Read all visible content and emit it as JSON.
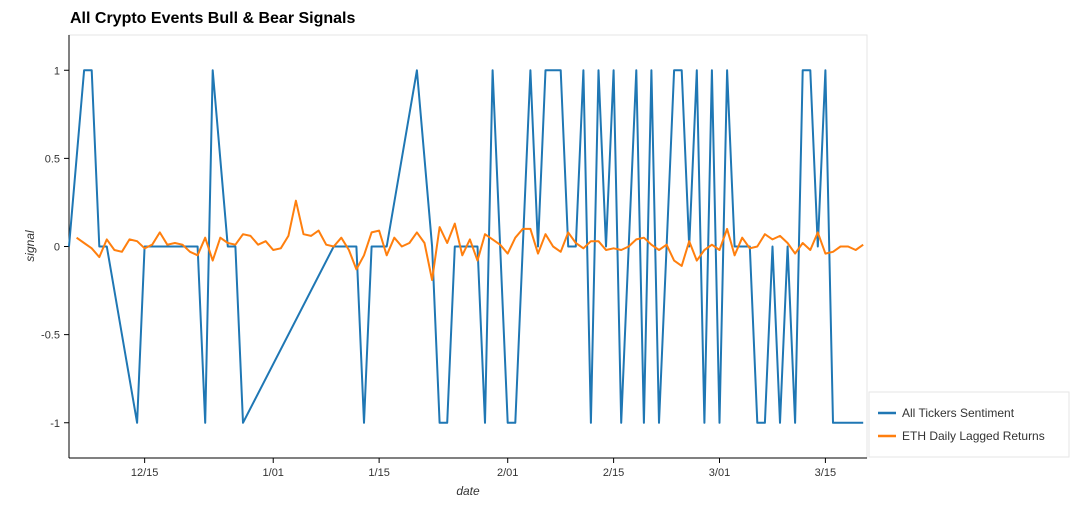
{
  "chart_data": {
    "type": "line",
    "title": "All Crypto Events Bull & Bear Signals",
    "xlabel": "date",
    "ylabel": "signal",
    "ylim": [
      -1.2,
      1.2
    ],
    "y_ticks": [
      "1",
      "0.5",
      "0",
      "-0.5",
      "-1"
    ],
    "x_ticks": [
      "12/15",
      "1/01",
      "1/15",
      "2/01",
      "2/15",
      "3/01",
      "3/15"
    ],
    "legend_position": "bottom-right",
    "grid": false,
    "series": [
      {
        "name": "All Tickers Sentiment",
        "color": "#1f77b4",
        "x": [
          "12/05",
          "12/07",
          "12/08",
          "12/09",
          "12/10",
          "12/14",
          "12/15",
          "12/16",
          "12/22",
          "12/23",
          "12/24",
          "12/26",
          "12/27",
          "12/28",
          "1/09",
          "1/10",
          "1/11",
          "1/12",
          "1/13",
          "1/14",
          "1/16",
          "1/20",
          "1/22",
          "1/23",
          "1/24",
          "1/25",
          "1/27",
          "1/28",
          "1/29",
          "1/30",
          "2/01",
          "2/02",
          "2/03",
          "2/04",
          "2/05",
          "2/06",
          "2/07",
          "2/08",
          "2/09",
          "2/10",
          "2/11",
          "2/12",
          "2/13",
          "2/14",
          "2/15",
          "2/16",
          "2/17",
          "2/18",
          "2/19",
          "2/20",
          "2/21",
          "2/22",
          "2/23",
          "2/24",
          "2/25",
          "2/26",
          "2/27",
          "2/28",
          "3/01",
          "3/02",
          "3/03",
          "3/04",
          "3/05",
          "3/06",
          "3/07",
          "3/08",
          "3/09",
          "3/10",
          "3/11",
          "3/12",
          "3/13",
          "3/14",
          "3/15",
          "3/16",
          "3/17",
          "3/18",
          "3/19",
          "3/20"
        ],
        "y": [
          0,
          1,
          1,
          0,
          0,
          -1,
          0,
          0,
          0,
          -1,
          1,
          0,
          0,
          -1,
          0,
          0,
          0,
          0,
          -1,
          0,
          0,
          1,
          0,
          -1,
          -1,
          0,
          0,
          0,
          -1,
          1,
          -1,
          -1,
          0,
          1,
          0,
          1,
          1,
          1,
          0,
          0,
          1,
          -1,
          1,
          0,
          1,
          -1,
          0,
          1,
          -1,
          1,
          -1,
          0,
          1,
          1,
          0,
          1,
          -1,
          1,
          -1,
          1,
          0,
          0,
          0,
          -1,
          -1,
          0,
          -1,
          0,
          -1,
          1,
          1,
          0,
          1,
          -1,
          -1,
          -1,
          -1,
          -1
        ]
      },
      {
        "name": "ETH Daily Lagged Returns",
        "color": "#ff7f0e",
        "x": [
          "12/06",
          "12/07",
          "12/08",
          "12/09",
          "12/10",
          "12/11",
          "12/12",
          "12/13",
          "12/14",
          "12/15",
          "12/16",
          "12/17",
          "12/18",
          "12/19",
          "12/20",
          "12/21",
          "12/22",
          "12/23",
          "12/24",
          "12/25",
          "12/26",
          "12/27",
          "12/28",
          "12/29",
          "12/30",
          "12/31",
          "1/01",
          "1/02",
          "1/03",
          "1/04",
          "1/05",
          "1/06",
          "1/07",
          "1/08",
          "1/09",
          "1/10",
          "1/11",
          "1/12",
          "1/13",
          "1/14",
          "1/15",
          "1/16",
          "1/17",
          "1/18",
          "1/19",
          "1/20",
          "1/21",
          "1/22",
          "1/23",
          "1/24",
          "1/25",
          "1/26",
          "1/27",
          "1/28",
          "1/29",
          "1/30",
          "1/31",
          "2/01",
          "2/02",
          "2/03",
          "2/04",
          "2/05",
          "2/06",
          "2/07",
          "2/08",
          "2/09",
          "2/10",
          "2/11",
          "2/12",
          "2/13",
          "2/14",
          "2/15",
          "2/16",
          "2/17",
          "2/18",
          "2/19",
          "2/20",
          "2/21",
          "2/22",
          "2/23",
          "2/24",
          "2/25",
          "2/26",
          "2/27",
          "2/28",
          "3/01",
          "3/02",
          "3/03",
          "3/04",
          "3/05",
          "3/06",
          "3/07",
          "3/08",
          "3/09",
          "3/10",
          "3/11",
          "3/12",
          "3/13",
          "3/14",
          "3/15",
          "3/16",
          "3/17",
          "3/18",
          "3/19",
          "3/20"
        ],
        "y": [
          0.05,
          0.02,
          -0.01,
          -0.06,
          0.04,
          -0.02,
          -0.03,
          0.04,
          0.03,
          -0.01,
          0.01,
          0.08,
          0.01,
          0.02,
          0.01,
          -0.03,
          -0.05,
          0.05,
          -0.08,
          0.05,
          0.02,
          0.01,
          0.07,
          0.06,
          0.01,
          0.03,
          -0.02,
          -0.01,
          0.06,
          0.26,
          0.07,
          0.06,
          0.09,
          0.01,
          0.0,
          0.05,
          -0.02,
          -0.13,
          -0.05,
          0.08,
          0.09,
          -0.05,
          0.05,
          0.0,
          0.02,
          0.08,
          0.02,
          -0.19,
          0.11,
          0.02,
          0.13,
          -0.05,
          0.04,
          -0.08,
          0.07,
          0.04,
          0.01,
          -0.04,
          0.05,
          0.1,
          0.1,
          -0.04,
          0.07,
          0.0,
          -0.03,
          0.08,
          0.02,
          -0.01,
          0.03,
          0.03,
          -0.02,
          -0.01,
          -0.02,
          0.0,
          0.04,
          0.05,
          0.01,
          -0.02,
          0.01,
          -0.08,
          -0.11,
          0.03,
          -0.08,
          -0.02,
          0.01,
          -0.02,
          0.1,
          -0.05,
          0.05,
          -0.01,
          0.0,
          0.07,
          0.04,
          0.06,
          0.02,
          -0.04,
          0.02,
          -0.02,
          0.08,
          -0.04,
          -0.03,
          0.0,
          0.0,
          -0.02,
          0.01
        ]
      }
    ]
  }
}
